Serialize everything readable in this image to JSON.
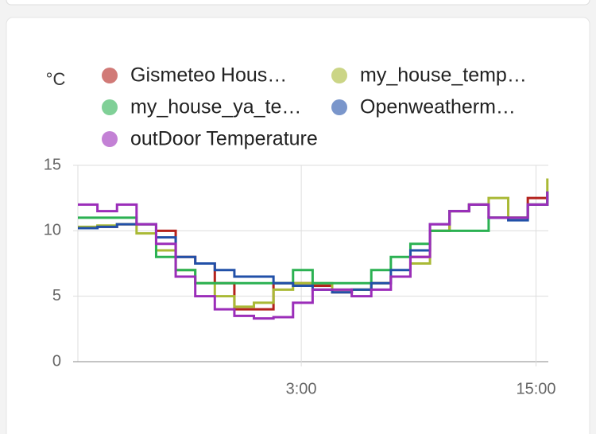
{
  "chart_data": {
    "type": "line",
    "step": true,
    "y_label": "°C",
    "x": [
      0,
      1,
      2,
      3,
      4,
      5,
      6,
      7,
      8,
      9,
      10,
      11,
      12,
      13,
      14,
      15,
      16,
      17,
      18,
      19,
      20,
      21,
      22,
      23,
      24
    ],
    "xlim": [
      0,
      24.05
    ],
    "xticks": [
      {
        "value": 11.42,
        "label": "3:00"
      },
      {
        "value": 23.42,
        "label": "15:00"
      }
    ],
    "ylim": [
      0,
      15
    ],
    "yticks": [
      0,
      5,
      10,
      15
    ],
    "grid": true,
    "series": [
      {
        "name": "Gismeteo Hous…",
        "color": "#b3221c",
        "values": [
          10.2,
          10.3,
          10.5,
          10.5,
          10,
          8,
          7.5,
          6,
          4,
          4,
          6,
          6,
          5.8,
          5.3,
          5.5,
          6,
          6.5,
          8,
          10,
          11.5,
          12,
          11,
          11,
          12.5,
          13
        ]
      },
      {
        "name": "my_house_temp…",
        "color": "#a9b935",
        "values": [
          10.3,
          10.4,
          10.5,
          9.8,
          8.5,
          7,
          6,
          5,
          4.2,
          4.5,
          5.5,
          6,
          6,
          5.5,
          5.5,
          6,
          6.5,
          7.5,
          10,
          11.5,
          12,
          12.5,
          11,
          12,
          14
        ]
      },
      {
        "name": "my_house_ya_te…",
        "color": "#2bb152",
        "values": [
          11,
          11,
          11,
          10.5,
          8,
          7,
          6,
          6,
          6,
          6,
          6,
          7,
          6,
          6,
          6,
          7,
          8,
          9,
          10,
          10,
          10,
          11,
          11,
          12,
          13
        ]
      },
      {
        "name": "Openweatherm…",
        "color": "#2150a8",
        "values": [
          10.2,
          10.3,
          10.5,
          10.5,
          9.5,
          8,
          7.5,
          7,
          6.5,
          6.5,
          6,
          5.8,
          5.5,
          5.3,
          5.5,
          6,
          7,
          8.5,
          10.5,
          11.5,
          12,
          11,
          10.8,
          12,
          13
        ]
      },
      {
        "name": "outDoor Temperature",
        "color": "#9b2db9",
        "values": [
          12,
          11.5,
          12,
          10.5,
          9,
          6.5,
          5,
          4,
          3.5,
          3.3,
          3.4,
          4.5,
          5.5,
          5.5,
          5,
          5.5,
          6.5,
          8,
          10.5,
          11.5,
          12,
          11,
          11,
          12,
          13
        ]
      }
    ]
  }
}
